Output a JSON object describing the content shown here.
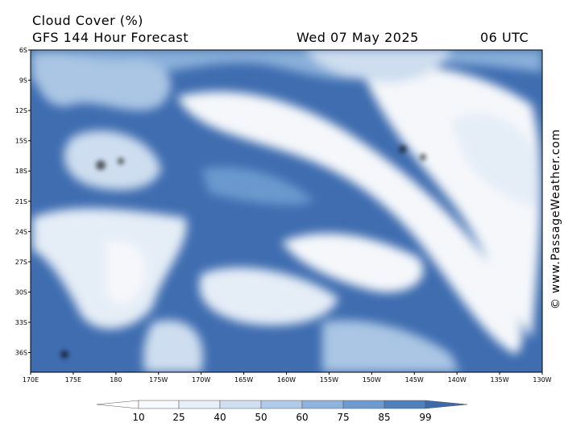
{
  "header": {
    "title": "Cloud Cover (%)",
    "subtitle": "GFS 144 Hour Forecast",
    "date": "Wed 07 May 2025",
    "time": "06 UTC"
  },
  "watermark": "© www.PassageWeather.com",
  "lat_labels": [
    "6S",
    "9S",
    "12S",
    "15S",
    "18S",
    "21S",
    "24S",
    "27S",
    "30S",
    "33S",
    "36S"
  ],
  "lon_labels": [
    "170E",
    "175E",
    "180",
    "175W",
    "170W",
    "165W",
    "160W",
    "155W",
    "150W",
    "145W",
    "140W",
    "135W",
    "130W"
  ],
  "colorbar": {
    "labels": [
      10,
      25,
      40,
      50,
      60,
      75,
      85,
      99
    ]
  }
}
